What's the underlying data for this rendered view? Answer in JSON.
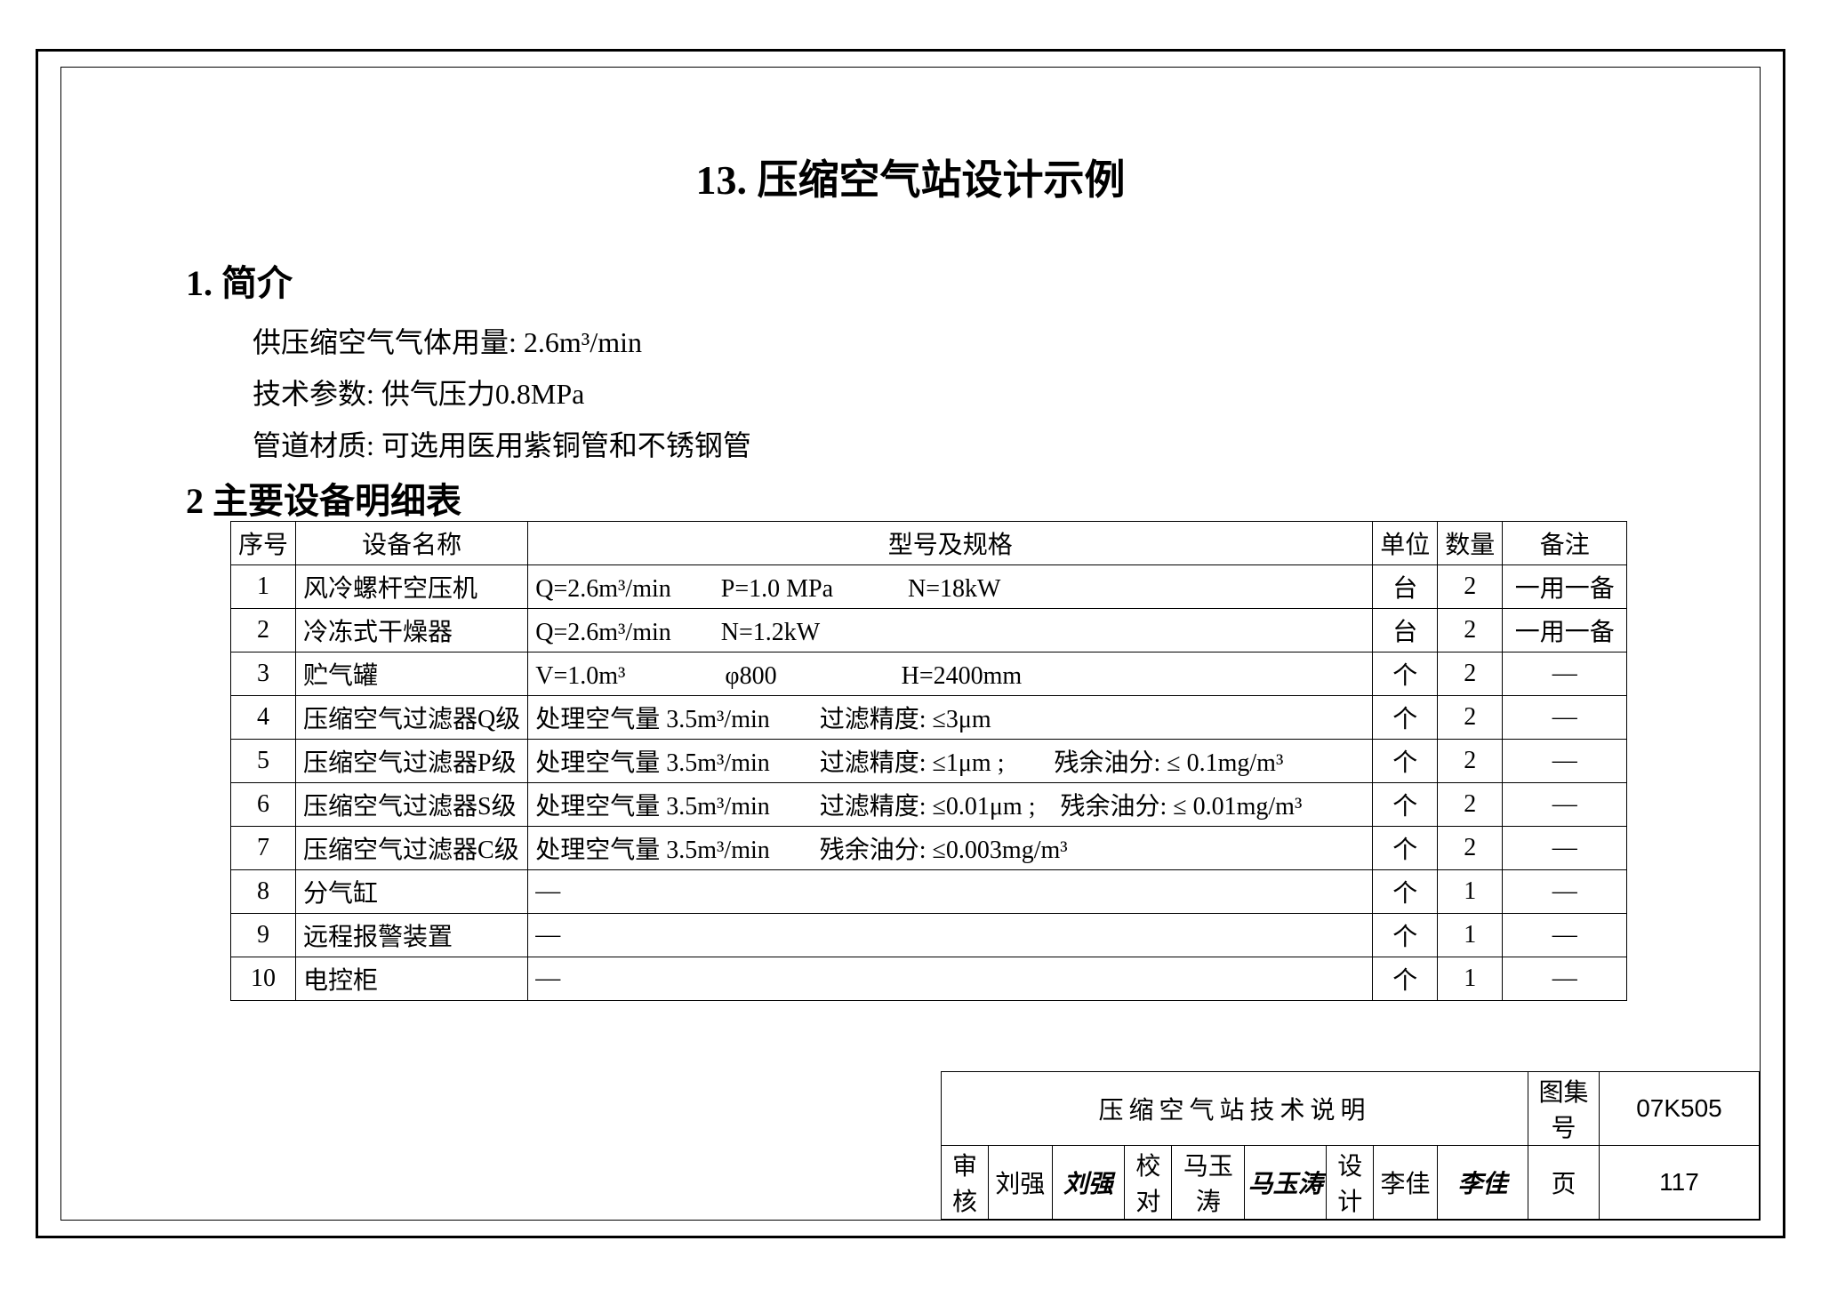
{
  "document": {
    "main_title": "13. 压缩空气站设计示例",
    "section1_heading": "1. 简介",
    "intro_lines": [
      "供压缩空气气体用量: 2.6m³/min",
      "技术参数: 供气压力0.8MPa",
      "管道材质: 可选用医用紫铜管和不锈钢管"
    ],
    "section2_heading": "2 主要设备明细表"
  },
  "equipment_table": {
    "headers": {
      "seq": "序号",
      "name": "设备名称",
      "spec": "型号及规格",
      "unit": "单位",
      "qty": "数量",
      "remark": "备注"
    },
    "rows": [
      {
        "seq": "1",
        "name": "风冷螺杆空压机",
        "spec": "Q=2.6m³/min　　P=1.0 MPa　　　N=18kW",
        "unit": "台",
        "qty": "2",
        "remark": "一用一备"
      },
      {
        "seq": "2",
        "name": "冷冻式干燥器",
        "spec": "Q=2.6m³/min　　N=1.2kW",
        "unit": "台",
        "qty": "2",
        "remark": "一用一备"
      },
      {
        "seq": "3",
        "name": "贮气罐",
        "spec": "V=1.0m³　　　　φ800　　　　　H=2400mm",
        "unit": "个",
        "qty": "2",
        "remark": "—"
      },
      {
        "seq": "4",
        "name": "压缩空气过滤器Q级",
        "spec": "处理空气量  3.5m³/min　　过滤精度: ≤3μm",
        "unit": "个",
        "qty": "2",
        "remark": "—"
      },
      {
        "seq": "5",
        "name": "压缩空气过滤器P级",
        "spec": "处理空气量  3.5m³/min　　过滤精度: ≤1μm ;　　残余油分: ≤ 0.1mg/m³",
        "unit": "个",
        "qty": "2",
        "remark": "—"
      },
      {
        "seq": "6",
        "name": "压缩空气过滤器S级",
        "spec": "处理空气量  3.5m³/min　　过滤精度: ≤0.01μm ;　残余油分: ≤ 0.01mg/m³",
        "unit": "个",
        "qty": "2",
        "remark": "—"
      },
      {
        "seq": "7",
        "name": "压缩空气过滤器C级",
        "spec": "处理空气量  3.5m³/min　　残余油分: ≤0.003mg/m³",
        "unit": "个",
        "qty": "2",
        "remark": "—"
      },
      {
        "seq": "8",
        "name": "分气缸",
        "spec": "—",
        "unit": "个",
        "qty": "1",
        "remark": "—"
      },
      {
        "seq": "9",
        "name": "远程报警装置",
        "spec": "—",
        "unit": "个",
        "qty": "1",
        "remark": "—"
      },
      {
        "seq": "10",
        "name": "电控柜",
        "spec": "—",
        "unit": "个",
        "qty": "1",
        "remark": "—"
      }
    ]
  },
  "title_block": {
    "drawing_title": "压缩空气站技术说明",
    "set_label": "图集号",
    "set_number": "07K505",
    "review_label": "审核",
    "review_name": "刘强",
    "review_sig": "刘强",
    "check_label": "校对",
    "check_name": "马玉涛",
    "check_sig": "马玉涛",
    "design_label": "设计",
    "design_name": "李佳",
    "design_sig": "李佳",
    "page_label": "页",
    "page_number": "117"
  },
  "colors": {
    "text": "#000000",
    "border": "#000000",
    "background": "#ffffff"
  }
}
